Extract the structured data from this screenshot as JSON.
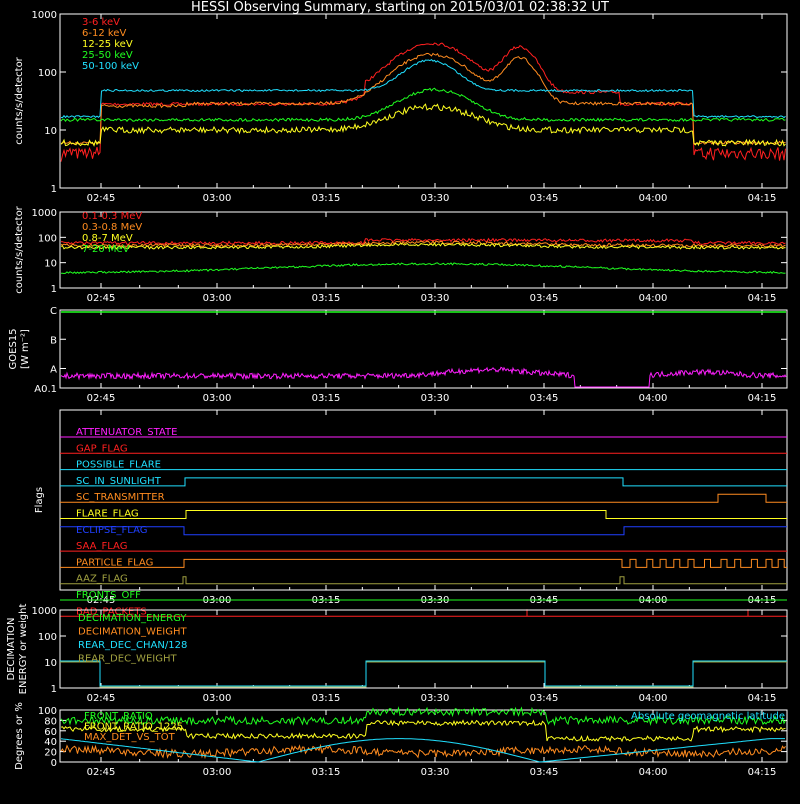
{
  "title": "HESSI Observing Summary, starting on 2015/03/01 02:38:32 UT",
  "x_ticks": [
    "02:45",
    "03:00",
    "03:15",
    "03:30",
    "03:45",
    "04:00",
    "04:15"
  ],
  "colors": {
    "red": "#ff2020",
    "orange": "#ff8c20",
    "yellow": "#ffff20",
    "green": "#20ff20",
    "cyan": "#20e0ff",
    "magenta": "#ff20ff",
    "blue": "#2040ff",
    "olive": "#a0a040",
    "white": "#ffffff"
  },
  "chart_data": [
    {
      "id": "lightcurves",
      "type": "line",
      "ylabel": "counts/s/detector",
      "yscale": "log",
      "y_ticks": [
        "1",
        "10",
        "100",
        "1000"
      ],
      "series": [
        {
          "name": "3-6 keV",
          "color": "red"
        },
        {
          "name": "6-12 keV",
          "color": "orange"
        },
        {
          "name": "12-25 keV",
          "color": "yellow"
        },
        {
          "name": "25-50 keV",
          "color": "green"
        },
        {
          "name": "50-100 keV",
          "color": "cyan"
        }
      ]
    },
    {
      "id": "highenergy",
      "type": "line",
      "ylabel": "counts/s/detector",
      "yscale": "log",
      "y_ticks": [
        "1",
        "10",
        "100",
        "1000"
      ],
      "series": [
        {
          "name": "0.1-0.3 MeV",
          "color": "red"
        },
        {
          "name": "0.3-0.8 MeV",
          "color": "orange"
        },
        {
          "name": "0.8-7 MeV",
          "color": "yellow"
        },
        {
          "name": "7-20 MeV",
          "color": "green"
        }
      ]
    },
    {
      "id": "goes",
      "type": "line",
      "ylabel": "GOES15",
      "ylabel2": "[W m⁻²]",
      "y_ticks": [
        "A0.1",
        "A",
        "B",
        "C"
      ]
    },
    {
      "id": "flags",
      "type": "line",
      "ylabel": "Flags",
      "flags": [
        {
          "label": "ATTENUATOR_STATE",
          "color": "magenta"
        },
        {
          "label": "GAP_FLAG",
          "color": "red"
        },
        {
          "label": "POSSIBLE_FLARE",
          "color": "cyan"
        },
        {
          "label": "SC_IN_SUNLIGHT",
          "color": "cyan"
        },
        {
          "label": "SC_TRANSMITTER",
          "color": "orange"
        },
        {
          "label": "FLARE_FLAG",
          "color": "yellow"
        },
        {
          "label": "ECLIPSE_FLAG",
          "color": "blue"
        },
        {
          "label": "SAA_FLAG",
          "color": "red"
        },
        {
          "label": "PARTICLE_FLAG",
          "color": "orange"
        },
        {
          "label": "AAZ_FLAG",
          "color": "olive"
        },
        {
          "label": "FRONTS_OFF",
          "color": "green"
        },
        {
          "label": "BAD_PACKETS",
          "color": "red"
        }
      ]
    },
    {
      "id": "decimation",
      "type": "line",
      "ylabel": "DECIMATION",
      "ylabel2": "ENERGY or weight",
      "y_ticks": [
        "1",
        "10",
        "100",
        "1000"
      ],
      "series": [
        {
          "name": "DECIMATION_ENERGY",
          "color": "green"
        },
        {
          "name": "DECIMATION_WEIGHT",
          "color": "orange"
        },
        {
          "name": "REAR_DEC_CHAN/128",
          "color": "cyan"
        },
        {
          "name": "REAR_DEC_WEIGHT",
          "color": "olive"
        }
      ]
    },
    {
      "id": "ratios",
      "type": "line",
      "ylabel": "Degrees or %",
      "y_ticks": [
        "0",
        "20",
        "40",
        "60",
        "80",
        "100"
      ],
      "series": [
        {
          "name": "FRONT_RATIO",
          "color": "green"
        },
        {
          "name": "FRONT_RATIO_1225",
          "color": "yellow"
        },
        {
          "name": "MAX_DET_VS_TOT",
          "color": "orange"
        },
        {
          "name": "Absolute geomagnetic latitude",
          "color": "cyan"
        }
      ]
    }
  ]
}
